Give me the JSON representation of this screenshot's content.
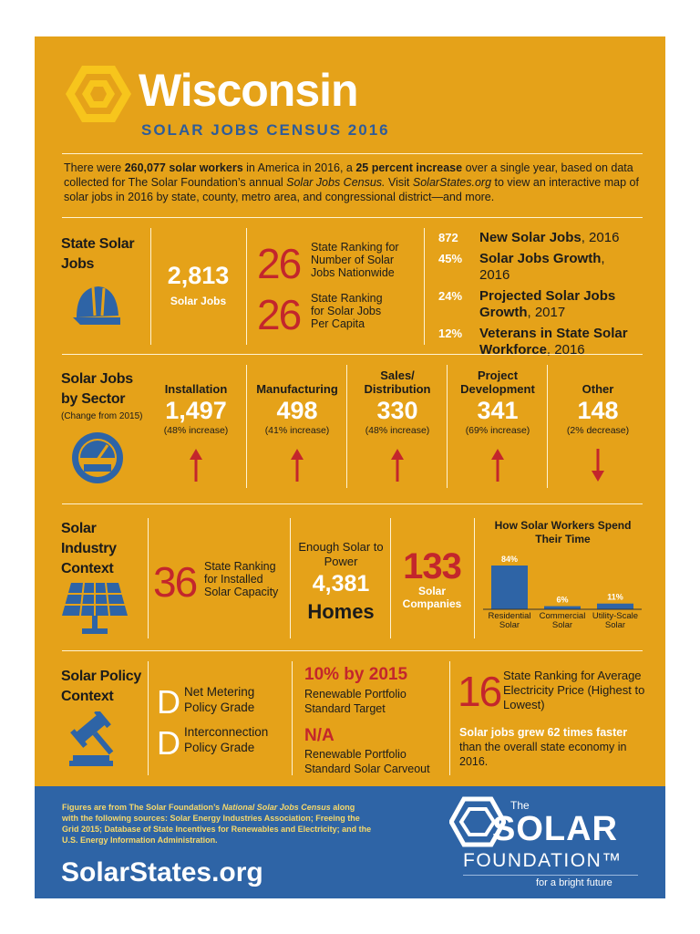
{
  "header": {
    "title": "Wisconsin",
    "subtitle": "SOLAR JOBS CENSUS 2016"
  },
  "intro": {
    "parts": [
      "There were ",
      "260,077 solar workers",
      " in America in 2016, a ",
      "25 percent increase",
      " over a single year, based on data collected for The Solar Foundation’s annual ",
      "Solar Jobs Census.",
      " Visit ",
      "SolarStates.org",
      " to view an interactive map of solar jobs in 2016 by state, county, metro area, and congressional district—and more."
    ]
  },
  "state_jobs": {
    "label": "State Solar Jobs",
    "count": "2,813",
    "count_label": "Solar Jobs",
    "rankings": [
      {
        "rank": "26",
        "text": "State Ranking for Number of Solar Jobs Nationwide"
      },
      {
        "rank": "26",
        "text": "State Ranking for Solar Jobs Per Capita"
      }
    ],
    "stats": [
      {
        "value": "872",
        "label": "New Solar Jobs",
        "suffix": ", 2016"
      },
      {
        "value": "45%",
        "label": "Solar Jobs Growth",
        "suffix": ", 2016"
      },
      {
        "value": "24%",
        "label": "Projected Solar Jobs Growth",
        "suffix": ", 2017"
      },
      {
        "value": "12%",
        "label": "Veterans in State Solar Workforce",
        "suffix": ", 2016"
      }
    ]
  },
  "sectors": {
    "label": "Solar Jobs by Sector",
    "note": "(Change from 2015)",
    "items": [
      {
        "name": "Installation",
        "value": "1,497",
        "change": "(48% increase)",
        "arrow": "up"
      },
      {
        "name": "Manufacturing",
        "value": "498",
        "change": "(41% increase)",
        "arrow": "up"
      },
      {
        "name": "Sales/ Distribution",
        "value": "330",
        "change": "(48% increase)",
        "arrow": "up"
      },
      {
        "name": "Project Development",
        "value": "341",
        "change": "(69% increase)",
        "arrow": "up"
      },
      {
        "name": "Other",
        "value": "148",
        "change": "(2% decrease)",
        "arrow": "down"
      }
    ]
  },
  "context": {
    "label": "Solar Industry Context",
    "ranking": {
      "rank": "36",
      "text": "State Ranking for Installed Solar Capacity"
    },
    "homes": {
      "lead": "Enough Solar to Power",
      "value": "4,381",
      "unit": "Homes"
    },
    "companies": {
      "value": "133",
      "label": "Solar Companies"
    },
    "time_chart": {
      "title": "How Solar Workers Spend Their Time",
      "categories": [
        "Residential Solar",
        "Commercial Solar",
        "Utility-Scale Solar"
      ],
      "values": [
        84,
        6,
        11
      ],
      "value_labels": [
        "84%",
        "6%",
        "11%"
      ],
      "color": "#2e64a6"
    }
  },
  "policy": {
    "label": "Solar Policy Context",
    "grades": [
      {
        "grade": "D",
        "label": "Net Metering Policy Grade"
      },
      {
        "grade": "D",
        "label": "Interconnection Policy Grade"
      }
    ],
    "rps": [
      {
        "value": "10% by 2015",
        "label": "Renewable Portfolio Standard Target"
      },
      {
        "value": "N/A",
        "label": "Renewable Portfolio Standard Solar Carveout"
      }
    ],
    "ranking": {
      "rank": "16",
      "text": "State Ranking for Average Electricity Price (Highest to Lowest)"
    },
    "growth": [
      "Solar jobs grew 62 times faster",
      "than the overall state economy in 2016."
    ]
  },
  "footer": {
    "sources": [
      "Figures are from The Solar Foundation’s ",
      "National Solar Jobs Census",
      " along with the following sources: Solar Energy Industries Association; Freeing the Grid 2015; Database of State Incentives for Renewables and Electricity; and the U.S. Energy Information Administration."
    ],
    "site": "SolarStates.org",
    "logo": {
      "the": "The",
      "solar": "SOLAR",
      "foundation": "FOUNDATION™",
      "tagline": "for a bright future"
    }
  }
}
